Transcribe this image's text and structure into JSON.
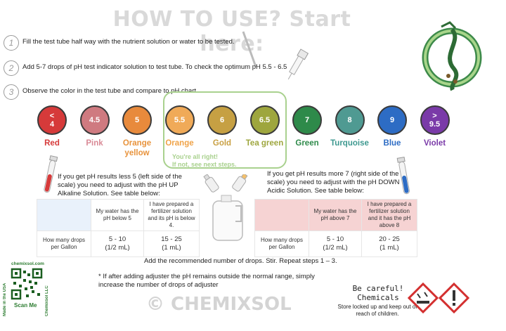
{
  "title": "HOW TO USE? Start here:",
  "steps": [
    {
      "num": "1",
      "text": "Fill the test tube half way with the nutrient solution or water to be tested."
    },
    {
      "num": "2",
      "text": "Add 5-7 drops of pH test indicator solution to test tube. To check the optimum pH 5.5 - 6.5"
    },
    {
      "num": "3",
      "text": "Observe the color in the test tube and compare to pH chart."
    }
  ],
  "scale": [
    {
      "sym": "<",
      "value": "4",
      "label": "Red",
      "color": "#d63a3a",
      "label_color": "#d63a3a"
    },
    {
      "sym": "",
      "value": "4.5",
      "label": "Pink",
      "color": "#cf7a80",
      "label_color": "#d98a96"
    },
    {
      "sym": "",
      "value": "5",
      "label": "Orange yellow",
      "color": "#e88a3c",
      "label_color": "#e8933c"
    },
    {
      "sym": "",
      "value": "5.5",
      "label": "Orange",
      "color": "#f0aa58",
      "label_color": "#f0a348"
    },
    {
      "sym": "",
      "value": "6",
      "label": "Gold",
      "color": "#c6a043",
      "label_color": "#c9a043"
    },
    {
      "sym": "",
      "value": "6.5",
      "label": "Tea green",
      "color": "#9ea63e",
      "label_color": "#9ea63e"
    },
    {
      "sym": "",
      "value": "7",
      "label": "Green",
      "color": "#2e8a4a",
      "label_color": "#2e8a4a"
    },
    {
      "sym": "",
      "value": "8",
      "label": "Turquoise",
      "color": "#4f9a92",
      "label_color": "#3e9990"
    },
    {
      "sym": "",
      "value": "9",
      "label": "Blue",
      "color": "#2d6cc4",
      "label_color": "#2d6cc4"
    },
    {
      "sym": ">",
      "value": "9.5",
      "label": "Violet",
      "color": "#7a3aa8",
      "label_color": "#7a3aa8"
    }
  ],
  "ok_text": [
    "You're all right!",
    "If not, see next steps."
  ],
  "left_para": "If you get pH results less 5 (left side of the scale) you need to adjust with the pH UP Alkaline Solution. See table below:",
  "right_para": "If you get pH results more 7 (right side of the scale) you need to adjust with the pH DOWN Acidic Solution. See table below:",
  "left_table": {
    "h1": "My water has the pH below 5",
    "h2": "I have prepared a fertilizer solution and its pH is below 4.",
    "row_label": "How many drops per Gallon",
    "c1a": "5 - 10",
    "c1b": "(1/2 mL)",
    "c2a": "15 - 25",
    "c2b": "(1 mL)"
  },
  "right_table": {
    "h1": "My water has the pH above 7",
    "h2": "I have prepared a fertilizer solution and it has the pH above 8",
    "row_label": "How many drops per Gallon",
    "c1a": "5 - 10",
    "c1b": "(1/2 mL)",
    "c2a": "20 - 25",
    "c2b": "(1 mL)"
  },
  "add_note": "Add the recommended number of drops. Stir. Repeat steps 1 – 3.",
  "if_note": "* If after adding adjuster the pH remains outside the normal range, simply increase the number of drops of adjuster",
  "logo": "© CHEMIXSOL",
  "careful": [
    "Be careful!",
    "Chemicals"
  ],
  "store": "Store locked up and keep out of reach of children.",
  "qr": {
    "site": "chemixsol.com",
    "scan": "Scan Me",
    "left_vertical": "Made in the USA",
    "right_vertical": "Chemixsol LLC"
  }
}
